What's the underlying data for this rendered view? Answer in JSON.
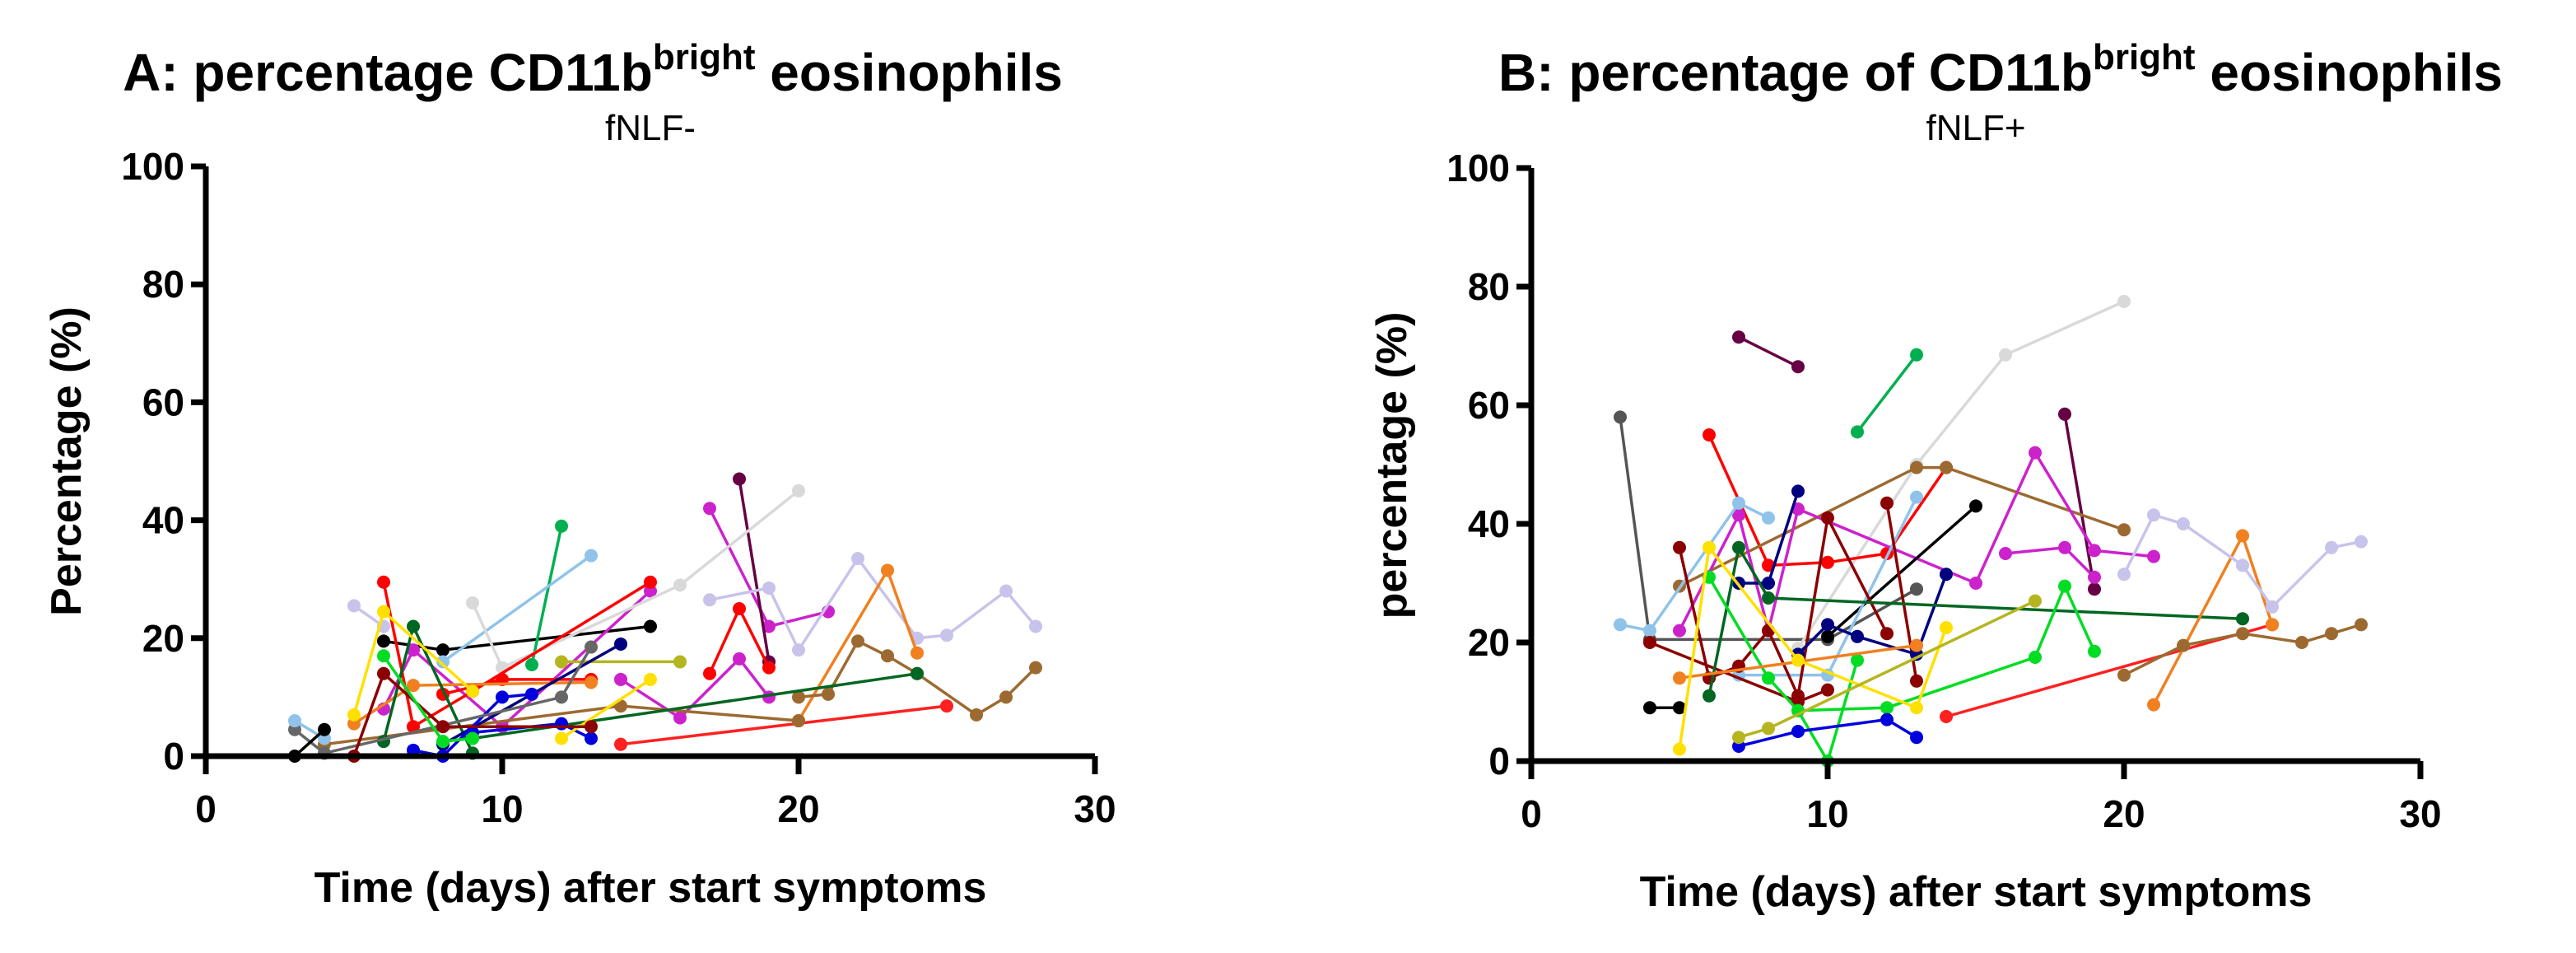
{
  "chart_data": [
    {
      "type": "line",
      "title_prefix": "A: percentage CD11b",
      "title_sup": "bright",
      "title_suffix": " eosinophils",
      "subtitle": "fNLF-",
      "xlabel": "Time (days) after start symptoms",
      "ylabel": "Percentage (%)",
      "xlim": [
        0,
        30
      ],
      "ylim": [
        0,
        100
      ],
      "xticks": [
        "0",
        "10",
        "20",
        "30"
      ],
      "yticks": [
        "0",
        "20",
        "40",
        "60",
        "80",
        "100"
      ],
      "grid": false,
      "series": [
        {
          "color": "#000000",
          "points": [
            [
              6,
              19.5
            ],
            [
              8,
              18
            ],
            [
              15,
              22
            ]
          ]
        },
        {
          "color": "#00b050",
          "points": [
            [
              11,
              15.5
            ],
            [
              12,
              39
            ]
          ]
        },
        {
          "color": "#8fc3ea",
          "points": [
            [
              8,
              16
            ],
            [
              13,
              34
            ]
          ]
        },
        {
          "color": "#cc22cc",
          "points": [
            [
              6,
              8
            ],
            [
              7,
              18
            ],
            [
              10,
              5
            ],
            [
              15,
              28
            ]
          ]
        },
        {
          "color": "#cc22cc",
          "points": [
            [
              17,
              42
            ],
            [
              19,
              22
            ],
            [
              21,
              24.5
            ]
          ]
        },
        {
          "color": "#cc22cc",
          "points": [
            [
              14,
              13
            ],
            [
              16,
              6.5
            ],
            [
              18,
              16.5
            ],
            [
              19,
              10
            ]
          ]
        },
        {
          "color": "#660044",
          "points": [
            [
              18,
              47
            ],
            [
              19,
              16
            ]
          ]
        },
        {
          "color": "#d9d9d9",
          "points": [
            [
              9,
              26
            ],
            [
              10,
              15
            ],
            [
              16,
              29
            ],
            [
              20,
              45
            ]
          ]
        },
        {
          "color": "#c8c3ea",
          "points": [
            [
              5,
              25.5
            ],
            [
              6,
              22
            ]
          ]
        },
        {
          "color": "#c8c3ea",
          "points": [
            [
              17,
              26.5
            ],
            [
              19,
              28.5
            ],
            [
              20,
              18
            ],
            [
              22,
              33.5
            ],
            [
              24,
              20
            ],
            [
              25,
              20.5
            ],
            [
              27,
              28
            ],
            [
              28,
              22
            ]
          ]
        },
        {
          "color": "#ff0000",
          "points": [
            [
              6,
              29.5
            ],
            [
              7,
              5
            ],
            [
              9,
              11
            ],
            [
              15,
              29.5
            ]
          ]
        },
        {
          "color": "#ff0000",
          "points": [
            [
              17,
              14
            ],
            [
              18,
              25
            ],
            [
              19,
              15
            ]
          ]
        },
        {
          "color": "#ff2020",
          "points": [
            [
              14,
              2
            ],
            [
              25,
              8.5
            ]
          ]
        },
        {
          "color": "#ff0000",
          "points": [
            [
              8,
              10.5
            ],
            [
              10,
              13
            ],
            [
              13,
              13
            ]
          ]
        },
        {
          "color": "#f08020",
          "points": [
            [
              20,
              6
            ],
            [
              23,
              31.5
            ],
            [
              24,
              17.5
            ]
          ]
        },
        {
          "color": "#f08020",
          "points": [
            [
              5,
              5.5
            ],
            [
              7,
              12
            ],
            [
              13,
              12.5
            ]
          ]
        },
        {
          "color": "#9c6a30",
          "points": [
            [
              20,
              10
            ],
            [
              21,
              10.5
            ],
            [
              22,
              19.5
            ],
            [
              23,
              17
            ],
            [
              24,
              14
            ],
            [
              26,
              7
            ],
            [
              27,
              10
            ],
            [
              28,
              15
            ]
          ]
        },
        {
          "color": "#9c6a30",
          "points": [
            [
              4,
              2
            ],
            [
              14,
              8.5
            ],
            [
              20,
              6
            ]
          ]
        },
        {
          "color": "#006622",
          "points": [
            [
              6,
              2.5
            ],
            [
              7,
              22
            ],
            [
              9,
              0.5
            ]
          ]
        },
        {
          "color": "#006622",
          "points": [
            [
              9,
              3
            ],
            [
              24,
              14
            ]
          ]
        },
        {
          "color": "#b5b520",
          "points": [
            [
              12,
              16
            ],
            [
              16,
              16
            ]
          ]
        },
        {
          "color": "#000080",
          "points": [
            [
              8,
              2
            ],
            [
              14,
              19
            ]
          ]
        },
        {
          "color": "#0000dd",
          "points": [
            [
              7,
              1
            ],
            [
              8,
              0
            ],
            [
              10,
              10
            ],
            [
              11,
              10.5
            ]
          ]
        },
        {
          "color": "#0000dd",
          "points": [
            [
              9,
              4
            ],
            [
              12,
              5.5
            ],
            [
              13,
              3
            ]
          ]
        },
        {
          "color": "#ffe000",
          "points": [
            [
              5,
              7
            ],
            [
              6,
              24.5
            ],
            [
              9,
              11
            ]
          ]
        },
        {
          "color": "#ffe000",
          "points": [
            [
              12,
              3
            ],
            [
              15,
              13
            ]
          ]
        },
        {
          "color": "#666666",
          "points": [
            [
              3,
              4.5
            ],
            [
              4,
              0.5
            ],
            [
              12,
              10
            ],
            [
              13,
              18.5
            ]
          ]
        },
        {
          "color": "#8fc3ea",
          "points": [
            [
              3,
              6
            ],
            [
              4,
              3
            ]
          ]
        },
        {
          "color": "#8b0000",
          "points": [
            [
              5,
              0
            ],
            [
              6,
              14
            ],
            [
              8,
              5
            ],
            [
              13,
              5
            ]
          ]
        },
        {
          "color": "#000000",
          "points": [
            [
              3,
              0
            ],
            [
              4,
              4.5
            ]
          ]
        },
        {
          "color": "#00dd22",
          "points": [
            [
              6,
              17
            ],
            [
              8,
              2.5
            ],
            [
              9,
              3
            ]
          ]
        }
      ]
    },
    {
      "type": "line",
      "title_prefix": "B: percentage of CD11b",
      "title_sup": "bright",
      "title_suffix": " eosinophils",
      "subtitle": "fNLF+",
      "xlabel": "Time (days) after start symptoms",
      "ylabel": "percentage (%)",
      "xlim": [
        0,
        30
      ],
      "ylim": [
        0,
        100
      ],
      "xticks": [
        "0",
        "10",
        "20",
        "30"
      ],
      "yticks": [
        "0",
        "20",
        "40",
        "60",
        "80",
        "100"
      ],
      "grid": false,
      "series": [
        {
          "color": "#555555",
          "points": [
            [
              3,
              58
            ],
            [
              4,
              20.5
            ],
            [
              10,
              20.5
            ],
            [
              13,
              29
            ]
          ]
        },
        {
          "color": "#660044",
          "points": [
            [
              7,
              71.5
            ],
            [
              9,
              66.5
            ]
          ]
        },
        {
          "color": "#00b050",
          "points": [
            [
              11,
              55.5
            ],
            [
              13,
              68.5
            ]
          ]
        },
        {
          "color": "#d9d9d9",
          "points": [
            [
              9,
              19
            ],
            [
              13,
              50
            ],
            [
              16,
              68.5
            ],
            [
              20,
              77.5
            ]
          ]
        },
        {
          "color": "#660044",
          "points": [
            [
              18,
              58.5
            ],
            [
              19,
              29
            ]
          ]
        },
        {
          "color": "#ff0000",
          "points": [
            [
              6,
              55
            ],
            [
              8,
              33
            ],
            [
              10,
              33.5
            ],
            [
              12,
              35
            ],
            [
              14,
              49.5
            ]
          ]
        },
        {
          "color": "#9c6a30",
          "points": [
            [
              5,
              29.5
            ],
            [
              13,
              49.5
            ],
            [
              14,
              49.5
            ],
            [
              20,
              39
            ]
          ]
        },
        {
          "color": "#cc22cc",
          "points": [
            [
              5,
              22
            ],
            [
              7,
              41.5
            ],
            [
              8,
              22
            ],
            [
              9,
              42.5
            ],
            [
              15,
              30
            ],
            [
              17,
              52
            ],
            [
              19,
              35.5
            ],
            [
              21,
              34.5
            ]
          ]
        },
        {
          "color": "#cc22cc",
          "points": [
            [
              16,
              35
            ],
            [
              18,
              36
            ],
            [
              19,
              31
            ]
          ]
        },
        {
          "color": "#000000",
          "points": [
            [
              4,
              9
            ],
            [
              5,
              9
            ]
          ]
        },
        {
          "color": "#000000",
          "points": [
            [
              10,
              21
            ],
            [
              15,
              43
            ]
          ]
        },
        {
          "color": "#8fc3ea",
          "points": [
            [
              3,
              23
            ],
            [
              4,
              22
            ],
            [
              7,
              43.5
            ],
            [
              8,
              41
            ]
          ]
        },
        {
          "color": "#8fc3ea",
          "points": [
            [
              7,
              14.5
            ],
            [
              10,
              14.5
            ],
            [
              13,
              44.5
            ]
          ]
        },
        {
          "color": "#8b0000",
          "points": [
            [
              5,
              36
            ],
            [
              6,
              14
            ],
            [
              7,
              16
            ],
            [
              8,
              22
            ],
            [
              9,
              11
            ],
            [
              10,
              41
            ],
            [
              12,
              21.5
            ]
          ]
        },
        {
          "color": "#8b0000",
          "points": [
            [
              12,
              43.5
            ],
            [
              13,
              13.5
            ]
          ]
        },
        {
          "color": "#8b0000",
          "points": [
            [
              4,
              20
            ],
            [
              9,
              10
            ],
            [
              10,
              12
            ]
          ]
        },
        {
          "color": "#000080",
          "points": [
            [
              7,
              30
            ],
            [
              8,
              30
            ],
            [
              9,
              45.5
            ]
          ]
        },
        {
          "color": "#000080",
          "points": [
            [
              9,
              18
            ],
            [
              10,
              23
            ],
            [
              11,
              21
            ],
            [
              13,
              18
            ],
            [
              14,
              31.5
            ]
          ]
        },
        {
          "color": "#006622",
          "points": [
            [
              6,
              11
            ],
            [
              7,
              36
            ],
            [
              8,
              27.5
            ],
            [
              24,
              24
            ]
          ]
        },
        {
          "color": "#00dd22",
          "points": [
            [
              6,
              31
            ],
            [
              8,
              14
            ],
            [
              9,
              8.5
            ],
            [
              10,
              0
            ],
            [
              11,
              17
            ]
          ]
        },
        {
          "color": "#00dd22",
          "points": [
            [
              9,
              8.5
            ],
            [
              12,
              9
            ],
            [
              17,
              17.5
            ],
            [
              18,
              29.5
            ],
            [
              19,
              18.5
            ]
          ]
        },
        {
          "color": "#ff2020",
          "points": [
            [
              14,
              7.5
            ],
            [
              25,
              23
            ]
          ]
        },
        {
          "color": "#f08020",
          "points": [
            [
              21,
              9.5
            ],
            [
              24,
              38
            ],
            [
              25,
              23
            ]
          ]
        },
        {
          "color": "#f08020",
          "points": [
            [
              5,
              14
            ],
            [
              13,
              19.5
            ]
          ]
        },
        {
          "color": "#9c6a30",
          "points": [
            [
              20,
              14.5
            ],
            [
              22,
              19.5
            ],
            [
              24,
              21.5
            ],
            [
              26,
              20
            ],
            [
              27,
              21.5
            ],
            [
              28,
              23
            ]
          ]
        },
        {
          "color": "#c8c3ea",
          "points": [
            [
              20,
              31.5
            ],
            [
              21,
              41.5
            ],
            [
              22,
              40
            ],
            [
              24,
              33
            ],
            [
              25,
              26
            ],
            [
              27,
              36
            ],
            [
              28,
              37
            ]
          ]
        },
        {
          "color": "#ffe000",
          "points": [
            [
              5,
              2
            ],
            [
              6,
              36
            ],
            [
              9,
              17
            ],
            [
              13,
              9
            ],
            [
              14,
              22.5
            ]
          ]
        },
        {
          "color": "#0000dd",
          "points": [
            [
              7,
              2.5
            ],
            [
              9,
              5
            ],
            [
              12,
              7
            ],
            [
              13,
              4
            ]
          ]
        },
        {
          "color": "#b5b520",
          "points": [
            [
              7,
              4
            ],
            [
              8,
              5.5
            ],
            [
              17,
              27
            ]
          ]
        }
      ]
    }
  ]
}
